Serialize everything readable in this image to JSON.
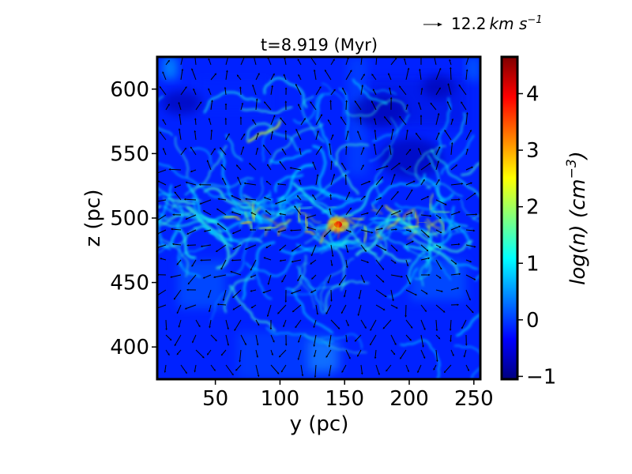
{
  "chart_data": {
    "type": "heatmap",
    "title": "t=8.919 (Myr)",
    "xlabel": "y (pc)",
    "ylabel": "z (pc)",
    "xlim": [
      5,
      255
    ],
    "ylim": [
      375,
      625
    ],
    "x_ticks": [
      50,
      100,
      150,
      200,
      250
    ],
    "y_ticks": [
      400,
      450,
      500,
      550,
      600
    ],
    "colorbar": {
      "label": "log(n) (cm^-3)",
      "label_base": "log(n) (cm",
      "label_exp": "−3",
      "label_close": ")",
      "range": [
        -1.05,
        4.65
      ],
      "ticks": [
        -1,
        0,
        1,
        2,
        3,
        4
      ],
      "colormap": "jet",
      "colors": [
        "#00007f",
        "#0000ff",
        "#007fff",
        "#00ffff",
        "#7fff7f",
        "#ffff00",
        "#ff7f00",
        "#ff0000",
        "#7f0000"
      ]
    },
    "quiver_key": {
      "value": 12.2,
      "label": "12.2",
      "unit": "km s",
      "unit_exp": "−1"
    },
    "field_description": "gas density slice, dense filamentary mid-plane near z=500 pc, dense clump near y=145 pc",
    "vector_overlay": true,
    "grid": false
  }
}
